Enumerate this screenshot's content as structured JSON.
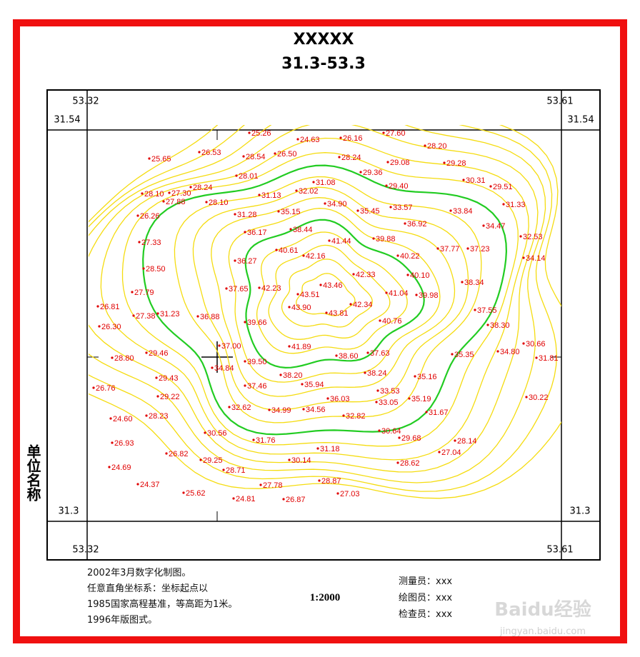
{
  "header": {
    "title": "XXXXX",
    "range": "31.3-53.3"
  },
  "corners": {
    "top_left_x": "53.32",
    "top_right_x": "53.61",
    "left_top_y": "31.54",
    "right_top_y": "31.54",
    "left_bottom_y": "31.3",
    "right_bottom_y": "31.3",
    "bottom_left_x": "53.32",
    "bottom_right_x": "53.61"
  },
  "side_label": "单位名称",
  "spot_heights": [
    "25.26",
    "24.63",
    "26.16",
    "27.60",
    "28.20",
    "25.65",
    "26.53",
    "28.54",
    "26.50",
    "28.24",
    "29.08",
    "29.28",
    "28.01",
    "29.36",
    "31.08",
    "29.40",
    "30.31",
    "29.51",
    "28.10",
    "27.30",
    "28.24",
    "27.88",
    "31.13",
    "32.02",
    "28.10",
    "31.33",
    "26.26",
    "31.28",
    "35.15",
    "34.90",
    "35.45",
    "33.57",
    "33.84",
    "34.47",
    "32.53",
    "36.17",
    "38.44",
    "36.92",
    "39.88",
    "41.44",
    "27.33",
    "40.61",
    "42.16",
    "40.22",
    "37.77",
    "37.23",
    "34.14",
    "36.27",
    "28.50",
    "42.33",
    "40.10",
    "38.34",
    "27.79",
    "37.65",
    "42.23",
    "43.46",
    "43.51",
    "41.04",
    "39.98",
    "26.81",
    "42.34",
    "43.90",
    "37.55",
    "31.23",
    "27.38",
    "36.88",
    "43.81",
    "26.30",
    "39.66",
    "40.76",
    "38.30",
    "30.66",
    "37.00",
    "41.89",
    "28.80",
    "29.46",
    "39.50",
    "38.60",
    "37.63",
    "35.35",
    "34.80",
    "31.81",
    "34.84",
    "29.43",
    "38.20",
    "38.24",
    "35.16",
    "26.76",
    "37.46",
    "35.94",
    "29.22",
    "36.03",
    "33.53",
    "35.19",
    "30.22",
    "32.62",
    "34.99",
    "34.56",
    "33.05",
    "31.67",
    "24.60",
    "28.23",
    "32.82",
    "30.64",
    "30.56",
    "26.93",
    "31.76",
    "29.68",
    "28.14",
    "31.18",
    "26.82",
    "27.04",
    "29.25",
    "30.14",
    "24.69",
    "28.71",
    "28.62",
    "28.87",
    "27.78",
    "24.37",
    "27.03",
    "25.62",
    "24.81",
    "26.87"
  ],
  "notes": [
    "2002年3月数字化制图。",
    "任意直角坐标系：坐标起点以",
    "1985国家高程基准，等高距为1米。",
    "1996年版图式。"
  ],
  "scale": "1:2000",
  "staff": [
    "测量员：xxx",
    "绘图员：xxx",
    "检查员：xxx"
  ],
  "watermark": {
    "brand": "Baidu经验",
    "url": "jingyan.baidu.com"
  }
}
